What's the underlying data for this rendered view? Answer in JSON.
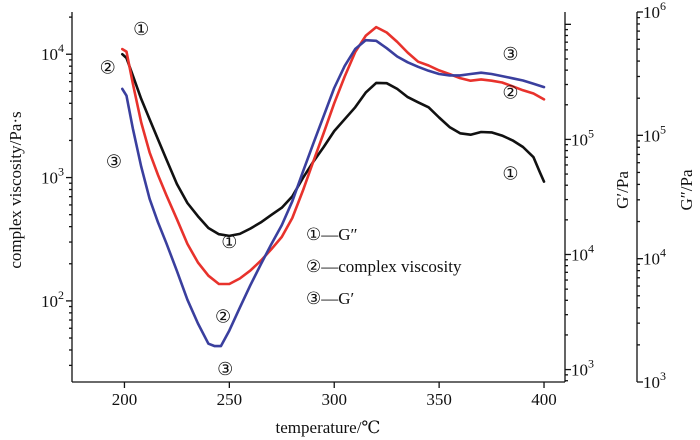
{
  "chart_data": {
    "type": "line",
    "title": "",
    "xlabel": "temperature/℃",
    "xlim": [
      175,
      410
    ],
    "x_ticks": [
      200,
      250,
      300,
      350,
      400
    ],
    "y_left": {
      "label": "complex viscosity/Pa·s",
      "scale": "log",
      "lim": [
        22,
        22000
      ],
      "ticks": [
        {
          "value": 100,
          "mantissa": "10",
          "exp": "2"
        },
        {
          "value": 1000,
          "mantissa": "10",
          "exp": "3"
        },
        {
          "value": 10000,
          "mantissa": "10",
          "exp": "4"
        }
      ]
    },
    "y_right1": {
      "label": "G′/Pa",
      "scale": "log",
      "lim": [
        780,
        1280000
      ],
      "ticks": [
        {
          "value": 1000,
          "mantissa": "10",
          "exp": "3"
        },
        {
          "value": 10000,
          "mantissa": "10",
          "exp": "4"
        },
        {
          "value": 100000,
          "mantissa": "10",
          "exp": "5"
        }
      ]
    },
    "y_right2": {
      "label": "G″/Pa",
      "scale": "log",
      "lim": [
        1000,
        1000000
      ],
      "ticks": [
        {
          "value": 1000,
          "mantissa": "10",
          "exp": "3"
        },
        {
          "value": 10000,
          "mantissa": "10",
          "exp": "4"
        },
        {
          "value": 100000,
          "mantissa": "10",
          "exp": "5"
        },
        {
          "value": 1000000,
          "mantissa": "10",
          "exp": "6"
        }
      ]
    },
    "series": [
      {
        "name": "G″",
        "marker": "①",
        "color": "#111111",
        "axis": "y_right1",
        "x": [
          199,
          201,
          204,
          208,
          212,
          216,
          220,
          225,
          230,
          235,
          240,
          245,
          250,
          255,
          260,
          265,
          270,
          275,
          280,
          285,
          290,
          295,
          300,
          305,
          310,
          315,
          320,
          325,
          330,
          335,
          340,
          345,
          350,
          355,
          360,
          365,
          370,
          375,
          380,
          385,
          390,
          395,
          398,
          400
        ],
        "values": [
          550000,
          510000,
          360000,
          225000,
          150000,
          100000,
          67000,
          41000,
          28000,
          21500,
          17000,
          15000,
          14500,
          15100,
          16800,
          19000,
          22100,
          25500,
          32000,
          46000,
          64000,
          86000,
          118000,
          150000,
          190000,
          255000,
          310000,
          308000,
          275000,
          233000,
          210000,
          190000,
          155000,
          128000,
          113000,
          110000,
          116000,
          115000,
          108000,
          98000,
          86000,
          70000,
          52000,
          43000
        ]
      },
      {
        "name": "complex viscosity",
        "marker": "②",
        "color": "#e8322c",
        "axis": "y_left",
        "x": [
          199,
          201,
          204,
          208,
          212,
          216,
          220,
          225,
          230,
          235,
          240,
          245,
          250,
          255,
          260,
          265,
          270,
          275,
          280,
          285,
          290,
          295,
          300,
          305,
          310,
          315,
          320,
          325,
          330,
          335,
          340,
          345,
          350,
          355,
          360,
          365,
          370,
          375,
          380,
          385,
          390,
          395,
          400
        ],
        "values": [
          11000,
          10500,
          5800,
          2800,
          1600,
          1050,
          720,
          460,
          290,
          205,
          160,
          137,
          137,
          152,
          176,
          212,
          262,
          330,
          470,
          780,
          1350,
          2300,
          4000,
          6600,
          10400,
          14100,
          16600,
          15000,
          12600,
          10300,
          8700,
          8100,
          7400,
          6900,
          6400,
          6100,
          6250,
          6100,
          5900,
          5500,
          5100,
          4800,
          4300
        ]
      },
      {
        "name": "G′",
        "marker": "③",
        "color": "#3a3f9e",
        "axis": "y_right1",
        "x": [
          199,
          201,
          204,
          208,
          212,
          216,
          220,
          225,
          230,
          235,
          240,
          243,
          246,
          250,
          255,
          260,
          265,
          270,
          275,
          280,
          285,
          290,
          295,
          300,
          305,
          310,
          315,
          320,
          325,
          330,
          335,
          340,
          345,
          350,
          355,
          360,
          365,
          370,
          375,
          380,
          385,
          390,
          395,
          400
        ],
        "values": [
          275000,
          240000,
          125000,
          58000,
          30500,
          19000,
          12500,
          7200,
          4050,
          2520,
          1680,
          1600,
          1600,
          2180,
          3450,
          5400,
          8200,
          12300,
          18000,
          29000,
          52000,
          92000,
          160000,
          280000,
          435000,
          610000,
          728000,
          720000,
          620000,
          525000,
          468000,
          428000,
          395000,
          370000,
          360000,
          360000,
          370000,
          380000,
          370000,
          355000,
          340000,
          325000,
          305000,
          285000
        ]
      }
    ],
    "curve_labels": [
      {
        "series": 0,
        "text": "①",
        "x": 208,
        "y": 16000
      },
      {
        "series": 1,
        "text": "②",
        "x": 192,
        "y": 7800
      },
      {
        "series": 2,
        "text": "③",
        "x": 195,
        "y": 1350
      },
      {
        "series": 0,
        "text": "①",
        "x": 250,
        "y": 300
      },
      {
        "series": 1,
        "text": "②",
        "x": 247,
        "y": 75
      },
      {
        "series": 2,
        "text": "③",
        "x": 248,
        "y": 28
      },
      {
        "series": 2,
        "text": "③",
        "x": 384,
        "y": 10000
      },
      {
        "series": 1,
        "text": "②",
        "x": 384,
        "y": 4900
      },
      {
        "series": 0,
        "text": "①",
        "x": 384,
        "y": 1080
      }
    ],
    "legend": {
      "placement": "center-right inside plot",
      "entries": [
        {
          "marker": "①",
          "text": "—G″"
        },
        {
          "marker": "②",
          "text": "—complex viscosity"
        },
        {
          "marker": "③",
          "text": "—G′"
        }
      ]
    },
    "grid": false
  }
}
